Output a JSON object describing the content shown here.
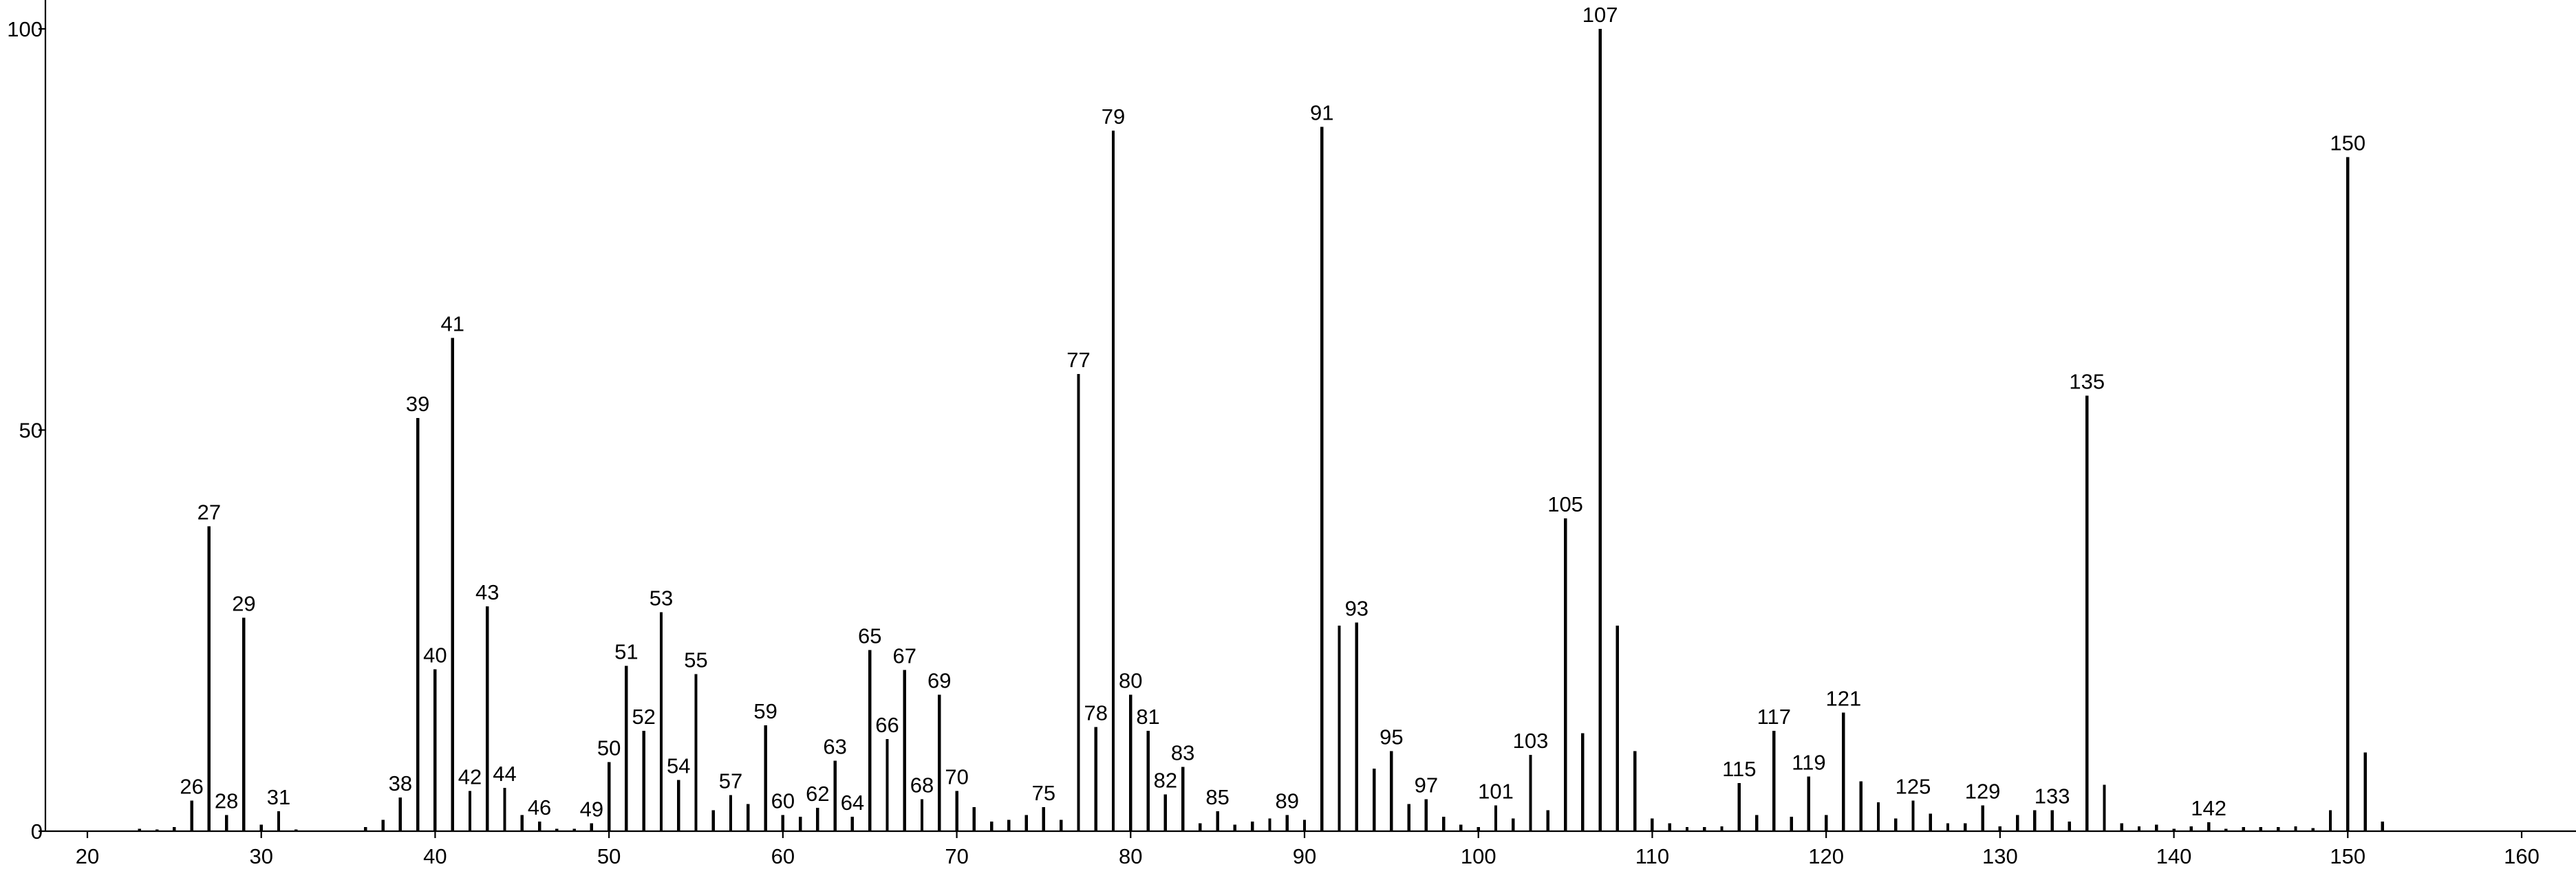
{
  "chart_data": {
    "type": "bar",
    "title": "",
    "xlabel": "",
    "ylabel": "",
    "xlim": [
      17.6,
      163.5
    ],
    "ylim": [
      0,
      102
    ],
    "x_ticks": [
      20,
      30,
      40,
      50,
      60,
      70,
      80,
      90,
      100,
      110,
      120,
      130,
      140,
      150,
      160
    ],
    "y_ticks": [
      0,
      50,
      100
    ],
    "grid": false,
    "legend": "none",
    "peaks": [
      {
        "x": 23,
        "y": 0.3
      },
      {
        "x": 24,
        "y": 0.2
      },
      {
        "x": 25,
        "y": 0.5
      },
      {
        "x": 26,
        "y": 3.8,
        "label": "26"
      },
      {
        "x": 27,
        "y": 38.0,
        "label": "27"
      },
      {
        "x": 28,
        "y": 2.0,
        "label": "28"
      },
      {
        "x": 29,
        "y": 26.6,
        "label": "29"
      },
      {
        "x": 30,
        "y": 0.8
      },
      {
        "x": 31,
        "y": 2.5,
        "label": "31"
      },
      {
        "x": 32,
        "y": 0.2
      },
      {
        "x": 36,
        "y": 0.5
      },
      {
        "x": 37,
        "y": 1.4
      },
      {
        "x": 38,
        "y": 4.2,
        "label": "38"
      },
      {
        "x": 39,
        "y": 51.5,
        "label": "39"
      },
      {
        "x": 40,
        "y": 20.2,
        "label": "40"
      },
      {
        "x": 41,
        "y": 61.5,
        "label": "41"
      },
      {
        "x": 42,
        "y": 5.0,
        "label": "42"
      },
      {
        "x": 43,
        "y": 28.0,
        "label": "43"
      },
      {
        "x": 44,
        "y": 5.4,
        "label": "44"
      },
      {
        "x": 45,
        "y": 2.0
      },
      {
        "x": 46,
        "y": 1.2,
        "label": "46"
      },
      {
        "x": 47,
        "y": 0.3
      },
      {
        "x": 48,
        "y": 0.3
      },
      {
        "x": 49,
        "y": 1.0,
        "label": "49"
      },
      {
        "x": 50,
        "y": 8.6,
        "label": "50"
      },
      {
        "x": 51,
        "y": 20.6,
        "label": "51"
      },
      {
        "x": 52,
        "y": 12.5,
        "label": "52"
      },
      {
        "x": 53,
        "y": 27.3,
        "label": "53"
      },
      {
        "x": 54,
        "y": 6.4,
        "label": "54"
      },
      {
        "x": 55,
        "y": 19.6,
        "label": "55"
      },
      {
        "x": 56,
        "y": 2.6
      },
      {
        "x": 57,
        "y": 4.5,
        "label": "57"
      },
      {
        "x": 58,
        "y": 3.4
      },
      {
        "x": 59,
        "y": 13.2,
        "label": "59"
      },
      {
        "x": 60,
        "y": 2.0,
        "label": "60"
      },
      {
        "x": 61,
        "y": 1.8
      },
      {
        "x": 62,
        "y": 2.9,
        "label": "62"
      },
      {
        "x": 63,
        "y": 8.8,
        "label": "63"
      },
      {
        "x": 64,
        "y": 1.8,
        "label": "64"
      },
      {
        "x": 65,
        "y": 22.6,
        "label": "65"
      },
      {
        "x": 66,
        "y": 11.5,
        "label": "66"
      },
      {
        "x": 67,
        "y": 20.1,
        "label": "67"
      },
      {
        "x": 68,
        "y": 4.0,
        "label": "68"
      },
      {
        "x": 69,
        "y": 17.0,
        "label": "69"
      },
      {
        "x": 70,
        "y": 5.0,
        "label": "70"
      },
      {
        "x": 71,
        "y": 3.0
      },
      {
        "x": 72,
        "y": 1.2
      },
      {
        "x": 73,
        "y": 1.4
      },
      {
        "x": 74,
        "y": 2.0
      },
      {
        "x": 75,
        "y": 3.0,
        "label": "75"
      },
      {
        "x": 76,
        "y": 1.4
      },
      {
        "x": 77,
        "y": 57.0,
        "label": "77"
      },
      {
        "x": 78,
        "y": 13.0,
        "label": "78"
      },
      {
        "x": 79,
        "y": 87.3,
        "label": "79"
      },
      {
        "x": 80,
        "y": 17.0,
        "label": "80"
      },
      {
        "x": 81,
        "y": 12.5,
        "label": "81"
      },
      {
        "x": 82,
        "y": 4.6,
        "label": "82"
      },
      {
        "x": 83,
        "y": 8.0,
        "label": "83"
      },
      {
        "x": 84,
        "y": 1.0
      },
      {
        "x": 85,
        "y": 2.5,
        "label": "85"
      },
      {
        "x": 86,
        "y": 0.8
      },
      {
        "x": 87,
        "y": 1.2
      },
      {
        "x": 88,
        "y": 1.6
      },
      {
        "x": 89,
        "y": 2.0,
        "label": "89"
      },
      {
        "x": 90,
        "y": 1.4
      },
      {
        "x": 91,
        "y": 87.8,
        "label": "91"
      },
      {
        "x": 92,
        "y": 25.6
      },
      {
        "x": 93,
        "y": 26.0,
        "label": "93"
      },
      {
        "x": 94,
        "y": 7.8
      },
      {
        "x": 95,
        "y": 10.0,
        "label": "95"
      },
      {
        "x": 96,
        "y": 3.4
      },
      {
        "x": 97,
        "y": 4.0,
        "label": "97"
      },
      {
        "x": 98,
        "y": 1.8
      },
      {
        "x": 99,
        "y": 0.8
      },
      {
        "x": 100,
        "y": 0.5
      },
      {
        "x": 101,
        "y": 3.2,
        "label": "101"
      },
      {
        "x": 102,
        "y": 1.6
      },
      {
        "x": 103,
        "y": 9.5,
        "label": "103"
      },
      {
        "x": 104,
        "y": 2.6
      },
      {
        "x": 105,
        "y": 39.0,
        "label": "105"
      },
      {
        "x": 106,
        "y": 12.2
      },
      {
        "x": 107,
        "y": 100.0,
        "label": "107"
      },
      {
        "x": 108,
        "y": 25.6
      },
      {
        "x": 109,
        "y": 10.0
      },
      {
        "x": 110,
        "y": 1.6
      },
      {
        "x": 111,
        "y": 1.0
      },
      {
        "x": 112,
        "y": 0.5
      },
      {
        "x": 113,
        "y": 0.5
      },
      {
        "x": 114,
        "y": 0.6
      },
      {
        "x": 115,
        "y": 6.0,
        "label": "115"
      },
      {
        "x": 116,
        "y": 2.0
      },
      {
        "x": 117,
        "y": 12.5,
        "label": "117"
      },
      {
        "x": 118,
        "y": 1.8
      },
      {
        "x": 119,
        "y": 6.8,
        "label": "119"
      },
      {
        "x": 120,
        "y": 2.0
      },
      {
        "x": 121,
        "y": 14.8,
        "label": "121"
      },
      {
        "x": 122,
        "y": 6.2
      },
      {
        "x": 123,
        "y": 3.6
      },
      {
        "x": 124,
        "y": 1.6
      },
      {
        "x": 125,
        "y": 3.8,
        "label": "125"
      },
      {
        "x": 126,
        "y": 2.2
      },
      {
        "x": 127,
        "y": 1.0
      },
      {
        "x": 128,
        "y": 1.0
      },
      {
        "x": 129,
        "y": 3.2,
        "label": "129"
      },
      {
        "x": 130,
        "y": 0.6
      },
      {
        "x": 131,
        "y": 2.0
      },
      {
        "x": 132,
        "y": 2.6
      },
      {
        "x": 133,
        "y": 2.6,
        "label": "133"
      },
      {
        "x": 134,
        "y": 1.2
      },
      {
        "x": 135,
        "y": 54.3,
        "label": "135"
      },
      {
        "x": 136,
        "y": 5.8
      },
      {
        "x": 137,
        "y": 1.0
      },
      {
        "x": 138,
        "y": 0.6
      },
      {
        "x": 139,
        "y": 0.8
      },
      {
        "x": 140,
        "y": 0.3
      },
      {
        "x": 141,
        "y": 0.6
      },
      {
        "x": 142,
        "y": 1.1,
        "label": "142"
      },
      {
        "x": 143,
        "y": 0.3
      },
      {
        "x": 144,
        "y": 0.5
      },
      {
        "x": 145,
        "y": 0.5
      },
      {
        "x": 146,
        "y": 0.5
      },
      {
        "x": 147,
        "y": 0.6
      },
      {
        "x": 148,
        "y": 0.4
      },
      {
        "x": 149,
        "y": 2.6
      },
      {
        "x": 150,
        "y": 84.0,
        "label": "150"
      },
      {
        "x": 151,
        "y": 9.8
      },
      {
        "x": 152,
        "y": 1.2
      }
    ]
  }
}
